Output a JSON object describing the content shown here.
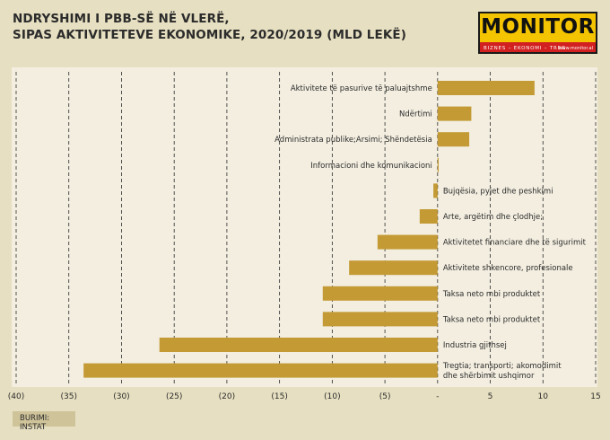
{
  "title_line1": "NDRYSHIMI I PBB-SË NË VLERË,",
  "title_line2": "SIPAS AKTIVITETEVE EKONOMIKE, 2020/2019 (MLD LEKË)",
  "logo": {
    "name": "MONITOR",
    "tagline": "BIZNES – EKONOMI – TREG",
    "url": "www.monitor.al"
  },
  "source": "BURIMI: INSTAT",
  "colors": {
    "bar": "#c49a35",
    "background": "#e6dfc1",
    "plot": "#f3eee0",
    "grid": "#2b2b2b"
  },
  "chart_data": {
    "type": "bar",
    "orientation": "horizontal",
    "categories": [
      [
        "Aktivitete të pasurive të paluajtshme"
      ],
      [
        "Ndërtimi"
      ],
      [
        "Administrata publike;Arsimi; Shëndetësia"
      ],
      [
        "Informacioni dhe komunikacioni"
      ],
      [
        "Bujqësia, pyjet dhe peshkimi"
      ],
      [
        "Arte, argëtim dhe çlodhje;"
      ],
      [
        "Aktivitetet financiare dhe të sigurimit"
      ],
      [
        "Aktivitete shkencore, profesionale"
      ],
      [
        "Taksa neto mbi produktet"
      ],
      [
        "Taksa neto mbi produktet"
      ],
      [
        "Industria gjithsej"
      ],
      [
        "Tregtia; transporti; akomodimit",
        "dhe shërbimit ushqimor"
      ]
    ],
    "values": [
      9.2,
      3.2,
      3.0,
      0.1,
      -0.4,
      -1.7,
      -5.7,
      -8.4,
      -10.9,
      -10.9,
      -26.4,
      -33.6
    ],
    "xlim": [
      -40,
      15
    ],
    "xticks": [
      -40,
      -35,
      -30,
      -25,
      -20,
      -15,
      -10,
      -5,
      0,
      5,
      10,
      15
    ],
    "xtick_labels": [
      "(40)",
      "(35)",
      "(30)",
      "(25)",
      "(20)",
      "(15)",
      "(10)",
      "(5)",
      "-",
      "5",
      "10",
      "15"
    ],
    "grid": "vertical dashed"
  }
}
